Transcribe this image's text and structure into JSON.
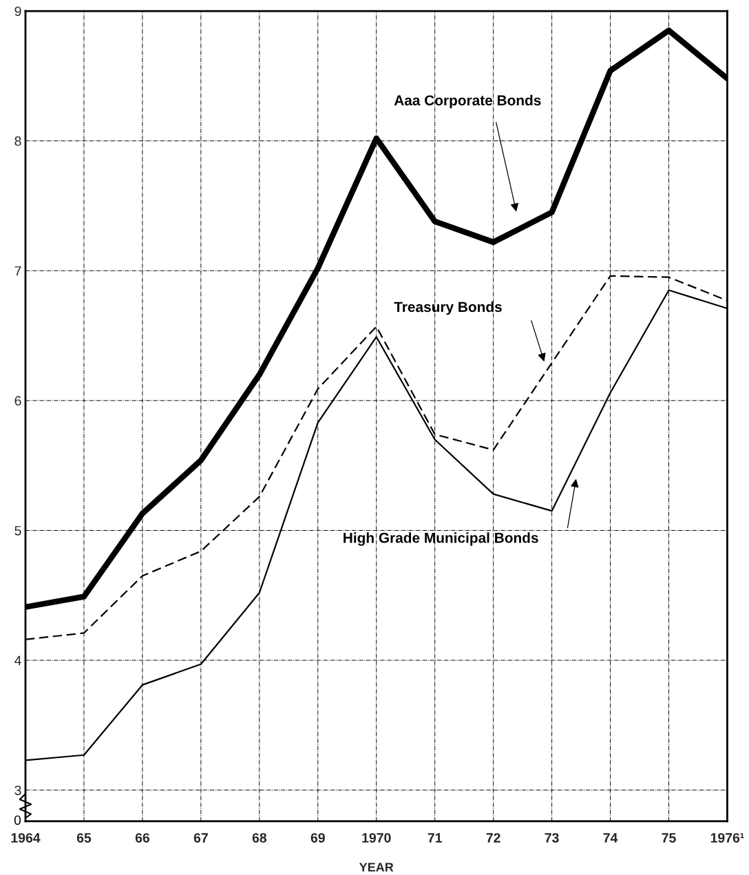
{
  "chart_data": {
    "type": "line",
    "xlabel": "YEAR",
    "x": [
      1964,
      1965,
      1966,
      1967,
      1968,
      1969,
      1970,
      1971,
      1972,
      1973,
      1974,
      1975,
      1976
    ],
    "series": [
      {
        "name": "Aaa Corporate Bonds",
        "color": "#000000",
        "line_style": "solid",
        "values": [
          4.41,
          4.49,
          5.13,
          5.54,
          6.2,
          7.02,
          8.02,
          7.38,
          7.22,
          7.45,
          8.54,
          8.85,
          8.48
        ]
      },
      {
        "name": "Treasury Bonds",
        "color": "#000000",
        "line_style": "dashed",
        "values": [
          4.16,
          4.21,
          4.65,
          4.84,
          5.26,
          6.09,
          6.57,
          5.74,
          5.62,
          6.29,
          6.96,
          6.95,
          6.77
        ]
      },
      {
        "name": "High Grade Municipal Bonds",
        "color": "#000000",
        "line_style": "solid",
        "values": [
          3.23,
          3.27,
          3.81,
          3.97,
          4.52,
          5.83,
          6.49,
          5.7,
          5.28,
          5.15,
          6.06,
          6.85,
          6.71
        ]
      }
    ],
    "xlim": [
      1964,
      1976
    ],
    "xticks": [
      1964,
      {
        "value": 1965,
        "label": "65"
      },
      {
        "value": 1966,
        "label": "66"
      },
      {
        "value": 1967,
        "label": "67"
      },
      {
        "value": 1968,
        "label": "68"
      },
      {
        "value": 1969,
        "label": "69"
      },
      1970,
      {
        "value": 1971,
        "label": "71"
      },
      {
        "value": 1972,
        "label": "72"
      },
      {
        "value": 1973,
        "label": "73"
      },
      {
        "value": 1974,
        "label": "74"
      },
      {
        "value": 1975,
        "label": "75"
      },
      {
        "value": 1976,
        "label": "1976¹"
      }
    ],
    "ylim": [
      2.76,
      9
    ],
    "annotations": [
      "0"
    ],
    "yticks": [
      {
        "value": 2.76,
        "label": null
      },
      3,
      4,
      5,
      6,
      7,
      8,
      9
    ],
    "grid": true,
    "legend": false,
    "marker": "none"
  }
}
